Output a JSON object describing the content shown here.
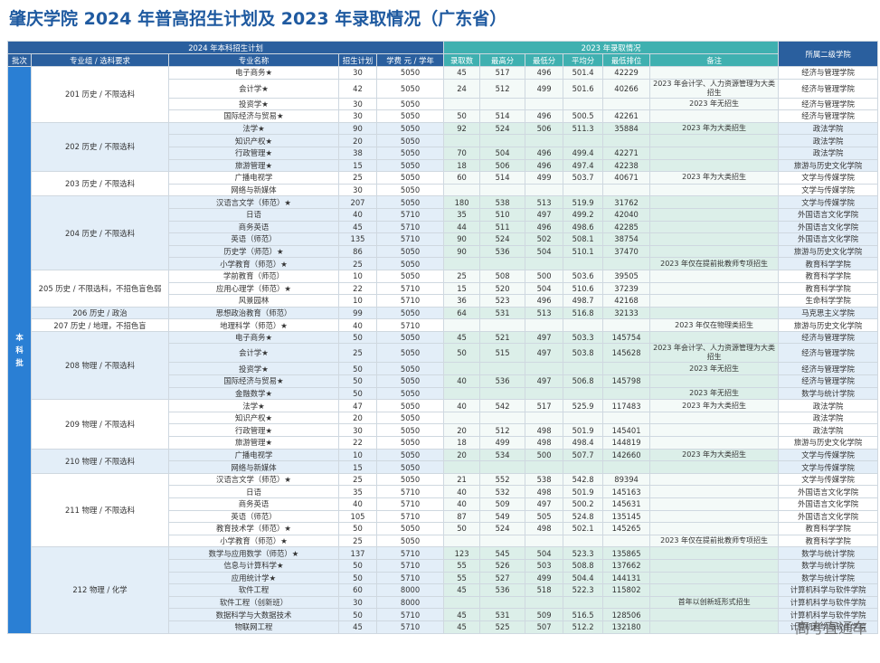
{
  "title": "肇庆学院 2024 年普高招生计划及 2023 年录取情况（广东省）",
  "watermark": "高考直通车",
  "header": {
    "plan_group": "2024 年本科招生计划",
    "adm_group": "2023 年录取情况",
    "college": "所属二级学院",
    "batch": "批次",
    "group": "专业组 / 选科要求",
    "major": "专业名称",
    "plan": "招生计划",
    "fee": "学费 元 / 学年",
    "count": "录取数",
    "max": "最高分",
    "min": "最低分",
    "avg": "平均分",
    "rank": "最低排位",
    "note": "备注"
  },
  "batch_label": "本科批",
  "groups": [
    {
      "label": "201 历史 / 不限选科",
      "rows": [
        {
          "major": "电子商务★",
          "plan": "30",
          "fee": "5050",
          "count": "45",
          "max": "517",
          "min": "496",
          "avg": "501.4",
          "rank": "42229",
          "note": "",
          "college": "经济与管理学院"
        },
        {
          "major": "会计学★",
          "plan": "42",
          "fee": "5050",
          "count": "24",
          "max": "512",
          "min": "499",
          "avg": "501.6",
          "rank": "40266",
          "note": "2023 年会计学、人力资源管理为大类招生",
          "college": "经济与管理学院"
        },
        {
          "major": "投资学★",
          "plan": "30",
          "fee": "5050",
          "count": "",
          "max": "",
          "min": "",
          "avg": "",
          "rank": "",
          "note": "2023 年无招生",
          "college": "经济与管理学院"
        },
        {
          "major": "国际经济与贸易★",
          "plan": "30",
          "fee": "5050",
          "count": "50",
          "max": "514",
          "min": "496",
          "avg": "500.5",
          "rank": "42261",
          "note": "",
          "college": "经济与管理学院"
        }
      ]
    },
    {
      "label": "202 历史 / 不限选科",
      "rows": [
        {
          "major": "法学★",
          "plan": "90",
          "fee": "5050",
          "count": "92",
          "max": "524",
          "min": "506",
          "avg": "511.3",
          "rank": "35884",
          "note": "2023 年为大类招生",
          "college": "政法学院"
        },
        {
          "major": "知识产权★",
          "plan": "20",
          "fee": "5050",
          "count": "",
          "max": "",
          "min": "",
          "avg": "",
          "rank": "",
          "note": "",
          "college": "政法学院"
        },
        {
          "major": "行政管理★",
          "plan": "38",
          "fee": "5050",
          "count": "70",
          "max": "504",
          "min": "496",
          "avg": "499.4",
          "rank": "42271",
          "note": "",
          "college": "政法学院"
        },
        {
          "major": "旅游管理★",
          "plan": "15",
          "fee": "5050",
          "count": "18",
          "max": "506",
          "min": "496",
          "avg": "497.4",
          "rank": "42238",
          "note": "",
          "college": "旅游与历史文化学院"
        }
      ]
    },
    {
      "label": "203 历史 / 不限选科",
      "rows": [
        {
          "major": "广播电视学",
          "plan": "25",
          "fee": "5050",
          "count": "60",
          "max": "514",
          "min": "499",
          "avg": "503.7",
          "rank": "40671",
          "note": "2023 年为大类招生",
          "college": "文学与传媒学院"
        },
        {
          "major": "网络与新媒体",
          "plan": "30",
          "fee": "5050",
          "count": "",
          "max": "",
          "min": "",
          "avg": "",
          "rank": "",
          "note": "",
          "college": "文学与传媒学院"
        }
      ]
    },
    {
      "label": "204 历史 / 不限选科",
      "rows": [
        {
          "major": "汉语言文学（师范）★",
          "plan": "207",
          "fee": "5050",
          "count": "180",
          "max": "538",
          "min": "513",
          "avg": "519.9",
          "rank": "31762",
          "note": "",
          "college": "文学与传媒学院"
        },
        {
          "major": "日语",
          "plan": "40",
          "fee": "5710",
          "count": "35",
          "max": "510",
          "min": "497",
          "avg": "499.2",
          "rank": "42040",
          "note": "",
          "college": "外国语言文化学院"
        },
        {
          "major": "商务英语",
          "plan": "45",
          "fee": "5710",
          "count": "44",
          "max": "511",
          "min": "496",
          "avg": "498.6",
          "rank": "42285",
          "note": "",
          "college": "外国语言文化学院"
        },
        {
          "major": "英语（师范）",
          "plan": "135",
          "fee": "5710",
          "count": "90",
          "max": "524",
          "min": "502",
          "avg": "508.1",
          "rank": "38754",
          "note": "",
          "college": "外国语言文化学院"
        },
        {
          "major": "历史学（师范）★",
          "plan": "86",
          "fee": "5050",
          "count": "90",
          "max": "536",
          "min": "504",
          "avg": "510.1",
          "rank": "37470",
          "note": "",
          "college": "旅游与历史文化学院"
        },
        {
          "major": "小学教育（师范）★",
          "plan": "25",
          "fee": "5050",
          "count": "",
          "max": "",
          "min": "",
          "avg": "",
          "rank": "",
          "note": "2023 年仅在提前批教师专项招生",
          "college": "教育科学学院"
        }
      ]
    },
    {
      "label": "205 历史 / 不限选科，不招色盲色弱",
      "rows": [
        {
          "major": "学前教育（师范）",
          "plan": "10",
          "fee": "5050",
          "count": "25",
          "max": "508",
          "min": "500",
          "avg": "503.6",
          "rank": "39505",
          "note": "",
          "college": "教育科学学院"
        },
        {
          "major": "应用心理学（师范）★",
          "plan": "22",
          "fee": "5710",
          "count": "15",
          "max": "520",
          "min": "504",
          "avg": "510.6",
          "rank": "37239",
          "note": "",
          "college": "教育科学学院"
        },
        {
          "major": "风景园林",
          "plan": "10",
          "fee": "5710",
          "count": "36",
          "max": "523",
          "min": "496",
          "avg": "498.7",
          "rank": "42168",
          "note": "",
          "college": "生命科学学院"
        }
      ]
    },
    {
      "label": "206 历史 / 政治",
      "rows": [
        {
          "major": "思想政治教育（师范）",
          "plan": "99",
          "fee": "5050",
          "count": "64",
          "max": "531",
          "min": "513",
          "avg": "516.8",
          "rank": "32133",
          "note": "",
          "college": "马克思主义学院"
        }
      ]
    },
    {
      "label": "207 历史 / 地理，不招色盲",
      "rows": [
        {
          "major": "地理科学（师范）★",
          "plan": "40",
          "fee": "5710",
          "count": "",
          "max": "",
          "min": "",
          "avg": "",
          "rank": "",
          "note": "2023 年仅在物理类招生",
          "college": "旅游与历史文化学院"
        }
      ]
    },
    {
      "label": "208 物理 / 不限选科",
      "rows": [
        {
          "major": "电子商务★",
          "plan": "50",
          "fee": "5050",
          "count": "45",
          "max": "521",
          "min": "497",
          "avg": "503.3",
          "rank": "145754",
          "note": "",
          "college": "经济与管理学院"
        },
        {
          "major": "会计学★",
          "plan": "25",
          "fee": "5050",
          "count": "50",
          "max": "515",
          "min": "497",
          "avg": "503.8",
          "rank": "145628",
          "note": "2023 年会计学、人力资源管理为大类招生",
          "college": "经济与管理学院"
        },
        {
          "major": "投资学★",
          "plan": "50",
          "fee": "5050",
          "count": "",
          "max": "",
          "min": "",
          "avg": "",
          "rank": "",
          "note": "2023 年无招生",
          "college": "经济与管理学院"
        },
        {
          "major": "国际经济与贸易★",
          "plan": "50",
          "fee": "5050",
          "count": "40",
          "max": "536",
          "min": "497",
          "avg": "506.8",
          "rank": "145798",
          "note": "",
          "college": "经济与管理学院"
        },
        {
          "major": "金融数学★",
          "plan": "50",
          "fee": "5050",
          "count": "",
          "max": "",
          "min": "",
          "avg": "",
          "rank": "",
          "note": "2023 年无招生",
          "college": "数学与统计学院"
        }
      ]
    },
    {
      "label": "209 物理 / 不限选科",
      "rows": [
        {
          "major": "法学★",
          "plan": "47",
          "fee": "5050",
          "count": "40",
          "max": "542",
          "min": "517",
          "avg": "525.9",
          "rank": "117483",
          "note": "2023 年为大类招生",
          "college": "政法学院"
        },
        {
          "major": "知识产权★",
          "plan": "20",
          "fee": "5050",
          "count": "",
          "max": "",
          "min": "",
          "avg": "",
          "rank": "",
          "note": "",
          "college": "政法学院"
        },
        {
          "major": "行政管理★",
          "plan": "30",
          "fee": "5050",
          "count": "20",
          "max": "512",
          "min": "498",
          "avg": "501.9",
          "rank": "145401",
          "note": "",
          "college": "政法学院"
        },
        {
          "major": "旅游管理★",
          "plan": "22",
          "fee": "5050",
          "count": "18",
          "max": "499",
          "min": "498",
          "avg": "498.4",
          "rank": "144819",
          "note": "",
          "college": "旅游与历史文化学院"
        }
      ]
    },
    {
      "label": "210 物理 / 不限选科",
      "rows": [
        {
          "major": "广播电视学",
          "plan": "10",
          "fee": "5050",
          "count": "20",
          "max": "534",
          "min": "500",
          "avg": "507.7",
          "rank": "142660",
          "note": "2023 年为大类招生",
          "college": "文学与传媒学院"
        },
        {
          "major": "网络与新媒体",
          "plan": "15",
          "fee": "5050",
          "count": "",
          "max": "",
          "min": "",
          "avg": "",
          "rank": "",
          "note": "",
          "college": "文学与传媒学院"
        }
      ]
    },
    {
      "label": "211 物理 / 不限选科",
      "rows": [
        {
          "major": "汉语言文学（师范）★",
          "plan": "25",
          "fee": "5050",
          "count": "21",
          "max": "552",
          "min": "538",
          "avg": "542.8",
          "rank": "89394",
          "note": "",
          "college": "文学与传媒学院"
        },
        {
          "major": "日语",
          "plan": "35",
          "fee": "5710",
          "count": "40",
          "max": "532",
          "min": "498",
          "avg": "501.9",
          "rank": "145163",
          "note": "",
          "college": "外国语言文化学院"
        },
        {
          "major": "商务英语",
          "plan": "40",
          "fee": "5710",
          "count": "40",
          "max": "509",
          "min": "497",
          "avg": "500.2",
          "rank": "145631",
          "note": "",
          "college": "外国语言文化学院"
        },
        {
          "major": "英语（师范）",
          "plan": "105",
          "fee": "5710",
          "count": "87",
          "max": "549",
          "min": "505",
          "avg": "524.8",
          "rank": "135145",
          "note": "",
          "college": "外国语言文化学院"
        },
        {
          "major": "教育技术学（师范）★",
          "plan": "50",
          "fee": "5050",
          "count": "50",
          "max": "524",
          "min": "498",
          "avg": "502.1",
          "rank": "145265",
          "note": "",
          "college": "教育科学学院"
        },
        {
          "major": "小学教育（师范）★",
          "plan": "25",
          "fee": "5050",
          "count": "",
          "max": "",
          "min": "",
          "avg": "",
          "rank": "",
          "note": "2023 年仅在提前批教师专项招生",
          "college": "教育科学学院"
        }
      ]
    },
    {
      "label": "212 物理 / 化学",
      "rows": [
        {
          "major": "数学与应用数学（师范）★",
          "plan": "137",
          "fee": "5710",
          "count": "123",
          "max": "545",
          "min": "504",
          "avg": "523.3",
          "rank": "135865",
          "note": "",
          "college": "数学与统计学院"
        },
        {
          "major": "信息与计算科学★",
          "plan": "50",
          "fee": "5710",
          "count": "55",
          "max": "526",
          "min": "503",
          "avg": "508.8",
          "rank": "137662",
          "note": "",
          "college": "数学与统计学院"
        },
        {
          "major": "应用统计学★",
          "plan": "50",
          "fee": "5710",
          "count": "55",
          "max": "527",
          "min": "499",
          "avg": "504.4",
          "rank": "144131",
          "note": "",
          "college": "数学与统计学院"
        },
        {
          "major": "软件工程",
          "plan": "60",
          "fee": "8000",
          "count": "45",
          "max": "536",
          "min": "518",
          "avg": "522.3",
          "rank": "115802",
          "note": "",
          "college": "计算机科学与软件学院"
        },
        {
          "major": "软件工程（创新班）",
          "plan": "30",
          "fee": "8000",
          "count": "",
          "max": "",
          "min": "",
          "avg": "",
          "rank": "",
          "note": "首年以创新班形式招生",
          "college": "计算机科学与软件学院"
        },
        {
          "major": "数据科学与大数据技术",
          "plan": "50",
          "fee": "5710",
          "count": "45",
          "max": "531",
          "min": "509",
          "avg": "516.5",
          "rank": "128506",
          "note": "",
          "college": "计算机科学与软件学院"
        },
        {
          "major": "物联网工程",
          "plan": "45",
          "fee": "5710",
          "count": "45",
          "max": "525",
          "min": "507",
          "avg": "512.2",
          "rank": "132180",
          "note": "",
          "college": "计算机科学与软件学院"
        }
      ]
    }
  ]
}
